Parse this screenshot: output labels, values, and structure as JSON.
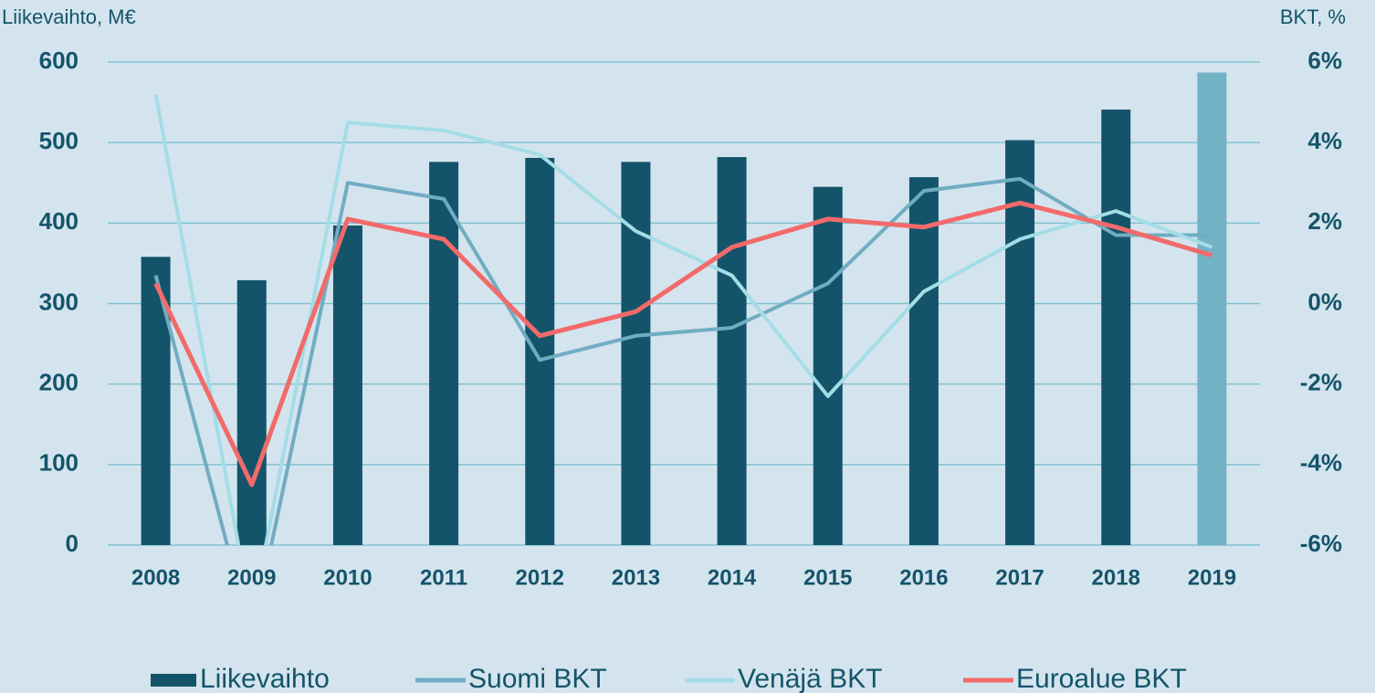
{
  "chart_data": {
    "type": "bar",
    "y_label": "Liikevaihto, M€",
    "y2_label": "BKT, %",
    "categories": [
      "2008",
      "2009",
      "2010",
      "2011",
      "2012",
      "2013",
      "2014",
      "2015",
      "2016",
      "2017",
      "2018",
      "2019"
    ],
    "series": [
      {
        "name": "Liikevaihto",
        "type": "bar",
        "colors": [
          "#14546a",
          "#14546a",
          "#14546a",
          "#14546a",
          "#14546a",
          "#14546a",
          "#14546a",
          "#14546a",
          "#14546a",
          "#14546a",
          "#14546a",
          "#72b2c5"
        ],
        "values": [
          358,
          329,
          397,
          476,
          481,
          476,
          482,
          445,
          457,
          503,
          541,
          587
        ]
      },
      {
        "name": "Suomi BKT",
        "type": "line",
        "axis": "y2",
        "color": "#70adc2",
        "values": [
          0.7,
          -8.3,
          3.0,
          2.6,
          -1.4,
          -0.8,
          -0.6,
          0.5,
          2.8,
          3.1,
          1.7,
          1.7
        ]
      },
      {
        "name": "Venäjä BKT",
        "type": "line",
        "axis": "y2",
        "color": "#a3dde6",
        "values": [
          5.2,
          -7.8,
          4.5,
          4.3,
          3.7,
          1.8,
          0.7,
          -2.3,
          0.3,
          1.6,
          2.3,
          1.4
        ]
      },
      {
        "name": "Euroalue BKT",
        "type": "line",
        "axis": "y2",
        "color": "#f26a6a",
        "values": [
          0.5,
          -4.5,
          2.1,
          1.6,
          -0.8,
          -0.2,
          1.4,
          2.1,
          1.9,
          2.5,
          1.9,
          1.2
        ]
      }
    ],
    "ylim": [
      0,
      600
    ],
    "yticks": [
      0,
      100,
      200,
      300,
      400,
      500,
      600
    ],
    "y2lim": [
      -6,
      6
    ],
    "y2ticks": [
      {
        "value": -6,
        "label": "-6%"
      },
      {
        "value": -4,
        "label": "-4%"
      },
      {
        "value": -2,
        "label": "-2%"
      },
      {
        "value": 0,
        "label": "0%"
      },
      {
        "value": 2,
        "label": "2%"
      },
      {
        "value": 4,
        "label": "4%"
      },
      {
        "value": 6,
        "label": "6%"
      }
    ],
    "grid": true
  }
}
